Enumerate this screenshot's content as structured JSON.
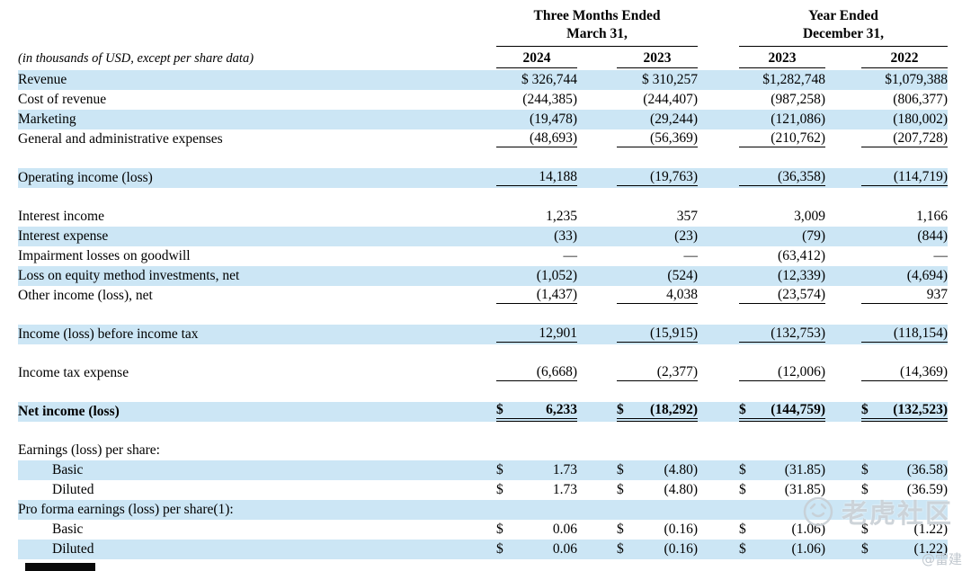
{
  "page": {
    "row_highlight": "#cce6f5",
    "text_color": "#000000"
  },
  "header": {
    "groups": [
      {
        "line1": "Three Months Ended",
        "line2": "March 31,"
      },
      {
        "line1": "Year Ended",
        "line2": "December 31,"
      }
    ],
    "note": "(in thousands of USD, except per share data)",
    "years": [
      "2024",
      "2023",
      "2023",
      "2022"
    ]
  },
  "rows": [
    {
      "label": "Revenue",
      "shade": true,
      "cells": [
        "$ 326,744",
        "$ 310,257",
        "$1,282,748",
        "$1,079,388"
      ]
    },
    {
      "label": "Cost of revenue",
      "cells": [
        "(244,385)",
        "(244,407)",
        "(987,258)",
        "(806,377)"
      ]
    },
    {
      "label": "Marketing",
      "shade": true,
      "cells": [
        "(19,478)",
        "(29,244)",
        "(121,086)",
        "(180,002)"
      ]
    },
    {
      "label": "General and administrative expenses",
      "ul": "single",
      "cells": [
        "(48,693)",
        "(56,369)",
        "(210,762)",
        "(207,728)"
      ]
    },
    {
      "spacer": true
    },
    {
      "label": "Operating income (loss)",
      "shade": true,
      "ul": "single",
      "cells": [
        "14,188",
        "(19,763)",
        "(36,358)",
        "(114,719)"
      ]
    },
    {
      "spacer": true
    },
    {
      "label": "Interest income",
      "cells": [
        "1,235",
        "357",
        "3,009",
        "1,166"
      ]
    },
    {
      "label": "Interest expense",
      "shade": true,
      "cells": [
        "(33)",
        "(23)",
        "(79)",
        "(844)"
      ]
    },
    {
      "label": "Impairment losses on goodwill",
      "cells": [
        "—",
        "—",
        "(63,412)",
        "—"
      ]
    },
    {
      "label": "Loss on equity method investments, net",
      "shade": true,
      "cells": [
        "(1,052)",
        "(524)",
        "(12,339)",
        "(4,694)"
      ]
    },
    {
      "label": "Other income (loss), net",
      "ul": "single",
      "cells": [
        "(1,437)",
        "4,038",
        "(23,574)",
        "937"
      ]
    },
    {
      "spacer": true
    },
    {
      "label": "Income (loss) before income tax",
      "shade": true,
      "ul": "single",
      "cells": [
        "12,901",
        "(15,915)",
        "(132,753)",
        "(118,154)"
      ]
    },
    {
      "spacer": true
    },
    {
      "label": "Income tax expense",
      "ul": "single",
      "cells": [
        "(6,668)",
        "(2,377)",
        "(12,006)",
        "(14,369)"
      ]
    },
    {
      "spacer": true
    },
    {
      "label": "Net income (loss)",
      "shade": true,
      "bold": true,
      "ul": "double",
      "cells": [
        "$|6,233",
        "$|(18,292)",
        "$|(144,759)",
        "$|(132,523)"
      ]
    },
    {
      "spacer": true
    },
    {
      "label": "Earnings (loss) per share:",
      "cells": []
    },
    {
      "label": "Basic",
      "indent": true,
      "shade": true,
      "cells": [
        "$|1.73",
        "$|(4.80)",
        "$|(31.85)",
        "$|(36.58)"
      ]
    },
    {
      "label": "Diluted",
      "indent": true,
      "cells": [
        "$|1.73",
        "$|(4.80)",
        "$|(31.85)",
        "$|(36.59)"
      ]
    },
    {
      "label": "Pro forma earnings (loss) per share(1):",
      "shade": true,
      "cells": []
    },
    {
      "label": "Basic",
      "indent": true,
      "cells": [
        "$|0.06",
        "$|(0.16)",
        "$|(1.06)",
        "$|(1.22)"
      ]
    },
    {
      "label": "Diluted",
      "indent": true,
      "shade": true,
      "cells": [
        "$|0.06",
        "$|(0.16)",
        "$|(1.06)",
        "$|(1.22)"
      ]
    }
  ],
  "watermark": {
    "brand": "老虎社区",
    "credit": "@雷建"
  }
}
